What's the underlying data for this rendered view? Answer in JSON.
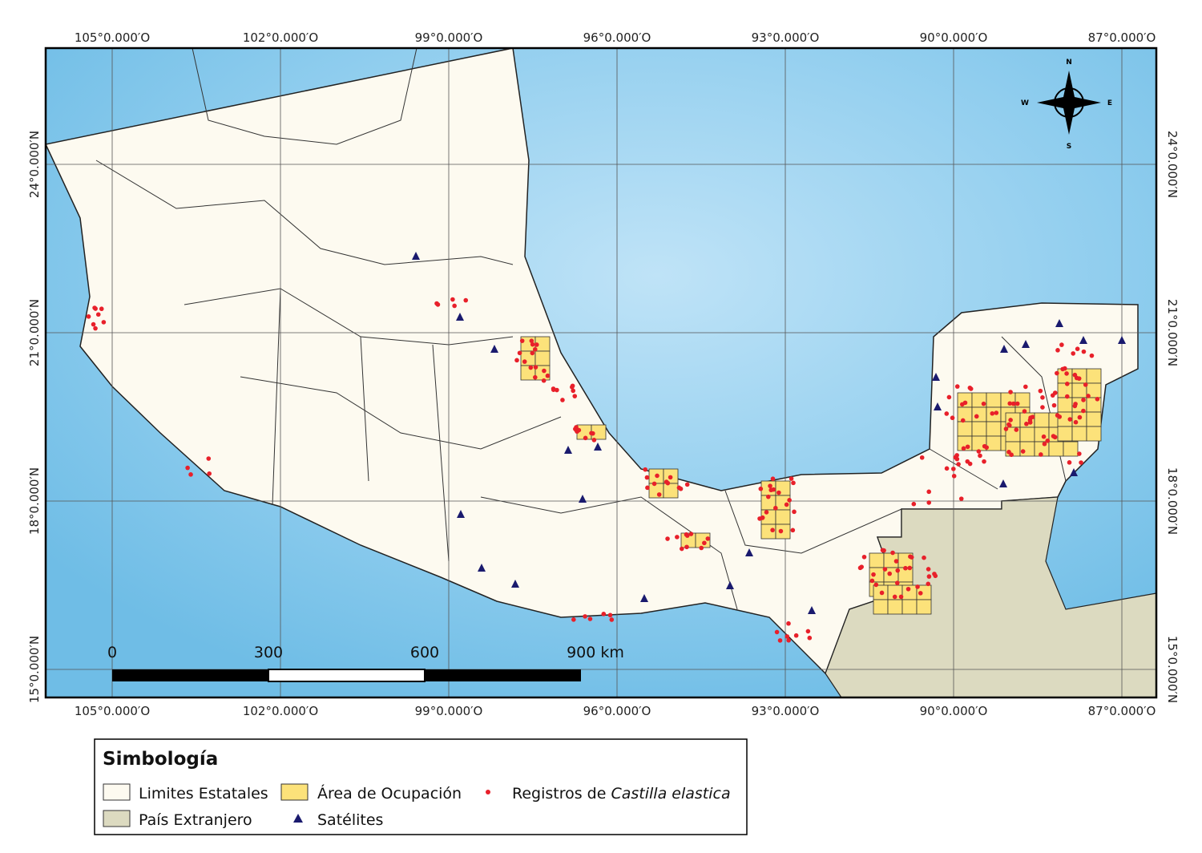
{
  "map": {
    "longitude_labels": [
      "105°0.000′O",
      "102°0.000′O",
      "99°0.000′O",
      "96°0.000′O",
      "93°0.000′O",
      "90°0.000′O",
      "87°0.000′O"
    ],
    "latitude_labels": [
      "24°0.000′N",
      "21°0.000′N",
      "18°0.000′N",
      "15°0.000′N"
    ],
    "compass": {
      "north": "N",
      "south": "S",
      "east": "E",
      "west": "W"
    },
    "scale_bar": [
      "0",
      "300",
      "600",
      "900 km"
    ]
  },
  "legend": {
    "title": "Simbología",
    "items": {
      "states": "Limites Estatales",
      "occupation": "Área de Ocupación",
      "records_prefix": "Registros de",
      "records_species": "Castilla elastica",
      "foreign": "País Extranjero",
      "satellites": "Satélites"
    }
  }
}
